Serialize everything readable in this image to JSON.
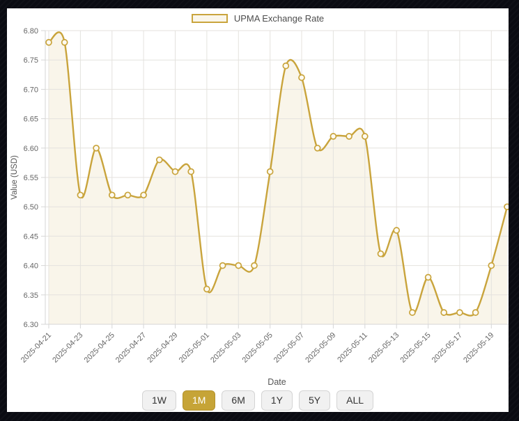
{
  "legend": {
    "label": "UPMA Exchange Rate"
  },
  "colors": {
    "accent_gold": "#c6a437",
    "line": "#c9a43c",
    "area_fill": "#f9f5ea",
    "marker_fill": "#fdfaf1",
    "grid": "#e4e2de",
    "axis": "#d6d6d6",
    "tick_text": "#666666",
    "page_background": "#0a0b12",
    "panel_background": "#ffffff"
  },
  "chart_data": {
    "type": "line",
    "series_name": "UPMA Exchange Rate",
    "x": [
      "2025-04-21",
      "2025-04-22",
      "2025-04-23",
      "2025-04-24",
      "2025-04-25",
      "2025-04-26",
      "2025-04-27",
      "2025-04-28",
      "2025-04-29",
      "2025-04-30",
      "2025-05-01",
      "2025-05-02",
      "2025-05-03",
      "2025-05-04",
      "2025-05-05",
      "2025-05-06",
      "2025-05-07",
      "2025-05-08",
      "2025-05-09",
      "2025-05-10",
      "2025-05-11",
      "2025-05-12",
      "2025-05-13",
      "2025-05-14",
      "2025-05-15",
      "2025-05-16",
      "2025-05-17",
      "2025-05-18",
      "2025-05-19",
      "2025-05-20"
    ],
    "values": [
      6.78,
      6.78,
      6.52,
      6.6,
      6.52,
      6.52,
      6.52,
      6.58,
      6.56,
      6.56,
      6.36,
      6.4,
      6.4,
      6.4,
      6.56,
      6.74,
      6.72,
      6.6,
      6.62,
      6.62,
      6.62,
      6.42,
      6.46,
      6.32,
      6.38,
      6.32,
      6.32,
      6.32,
      6.4,
      6.5
    ],
    "xlabel": "Date",
    "ylabel": "Value (USD)",
    "ylim": [
      6.3,
      6.8
    ],
    "yticks": [
      "6.80",
      "6.75",
      "6.70",
      "6.65",
      "6.60",
      "6.55",
      "6.50",
      "6.45",
      "6.40",
      "6.35",
      "6.30"
    ],
    "x_tick_every": 2,
    "x_tick_labels": [
      "2025-04-21",
      "2025-04-23",
      "2025-04-25",
      "2025-04-27",
      "2025-04-29",
      "2025-05-01",
      "2025-05-03",
      "2025-05-05",
      "2025-05-07",
      "2025-05-09",
      "2025-05-11",
      "2025-05-13",
      "2025-05-15",
      "2025-05-17",
      "2025-05-19"
    ],
    "grid": true,
    "legend_position": "top",
    "marker": "circle-open",
    "area": true
  },
  "controls": {
    "range_buttons": [
      {
        "label": "1W",
        "active": false
      },
      {
        "label": "1M",
        "active": true
      },
      {
        "label": "6M",
        "active": false
      },
      {
        "label": "1Y",
        "active": false
      },
      {
        "label": "5Y",
        "active": false
      },
      {
        "label": "ALL",
        "active": false
      }
    ]
  }
}
